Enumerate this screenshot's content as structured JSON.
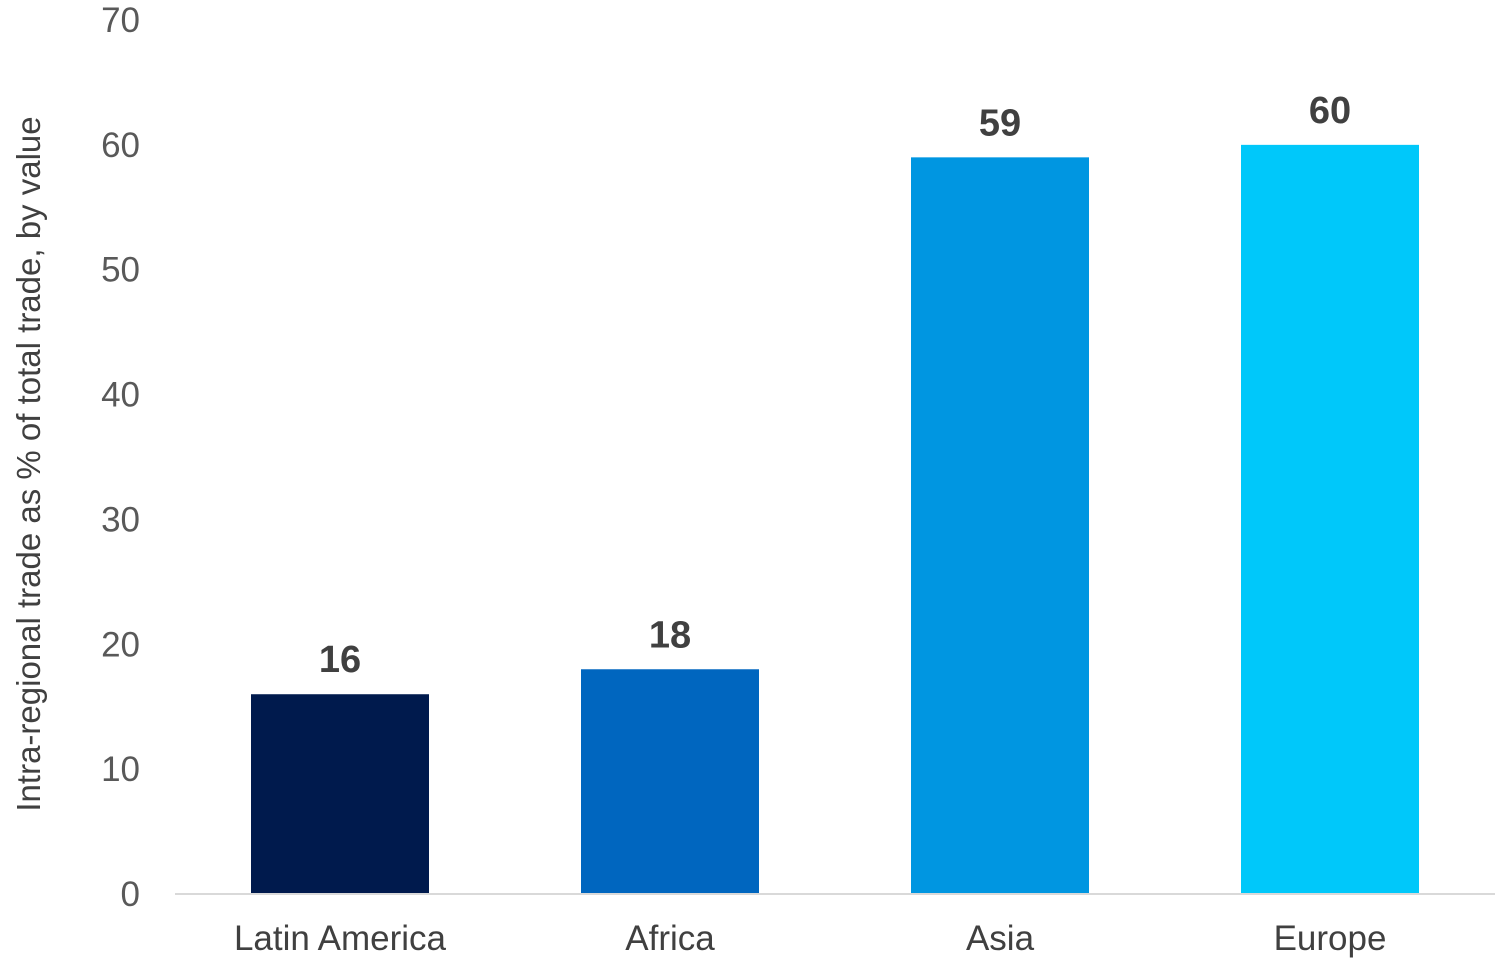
{
  "chart_data": {
    "type": "bar",
    "title": "",
    "xlabel": "",
    "ylabel": "Intra-regional trade as % of total trade, by value",
    "categories": [
      "Latin America",
      "Africa",
      "Asia",
      "Europe"
    ],
    "values": [
      16,
      18,
      59,
      60
    ],
    "data_labels": [
      "16",
      "18",
      "59",
      "60"
    ],
    "ylim": [
      0,
      70
    ],
    "yticks": [
      0,
      10,
      20,
      30,
      40,
      50,
      60,
      70
    ],
    "ytick_labels": [
      "0",
      "10",
      "20",
      "30",
      "40",
      "50",
      "60",
      "70"
    ],
    "grid": false,
    "legend": "none",
    "bar_colors": [
      "#001A4D",
      "#0066BF",
      "#0096E1",
      "#00C8FA"
    ],
    "axis_line_color": "#D9D9D9"
  }
}
